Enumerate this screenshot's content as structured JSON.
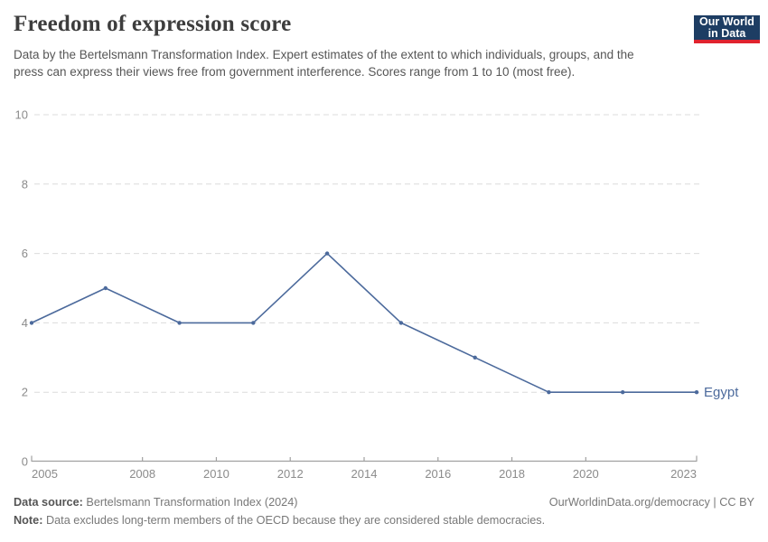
{
  "header": {
    "title": "Freedom of expression score",
    "subtitle": "Data by the Bertelsmann Transformation Index. Expert estimates of the extent to which individuals, groups, and the press can express their views free from government interference. Scores range from 1 to 10 (most free).",
    "logo_line1": "Our World",
    "logo_line2": "in Data"
  },
  "chart_data": {
    "type": "line",
    "title": "Freedom of expression score",
    "x": [
      2005,
      2007,
      2009,
      2011,
      2013,
      2015,
      2017,
      2019,
      2021,
      2023
    ],
    "series": [
      {
        "name": "Egypt",
        "color": "#4c6a9c",
        "values": [
          4,
          5,
          4,
          4,
          6,
          4,
          3,
          2,
          2,
          2
        ]
      }
    ],
    "xlim": [
      2005,
      2023
    ],
    "ylim": [
      0,
      10
    ],
    "x_ticks": [
      "2005",
      "2008",
      "2010",
      "2012",
      "2014",
      "2016",
      "2018",
      "2020",
      "2023"
    ],
    "y_ticks": [
      "0",
      "2",
      "4",
      "6",
      "8",
      "10"
    ],
    "grid": "horizontal dashed",
    "legend_position": "end-of-line label"
  },
  "colors": {
    "series": "#4c6a9c",
    "grid": "#dcdcdc",
    "axis": "#a1a1a1",
    "tick_label": "#8b8b8b",
    "logo_bg": "#1d3d63",
    "logo_bar": "#e0232e"
  },
  "footer": {
    "source_label": "Data source:",
    "source_value": "Bertelsmann Transformation Index (2024)",
    "credit": "OurWorldinData.org/democracy | CC BY",
    "note_label": "Note:",
    "note_value": "Data excludes long-term members of the OECD because they are considered stable democracies."
  }
}
